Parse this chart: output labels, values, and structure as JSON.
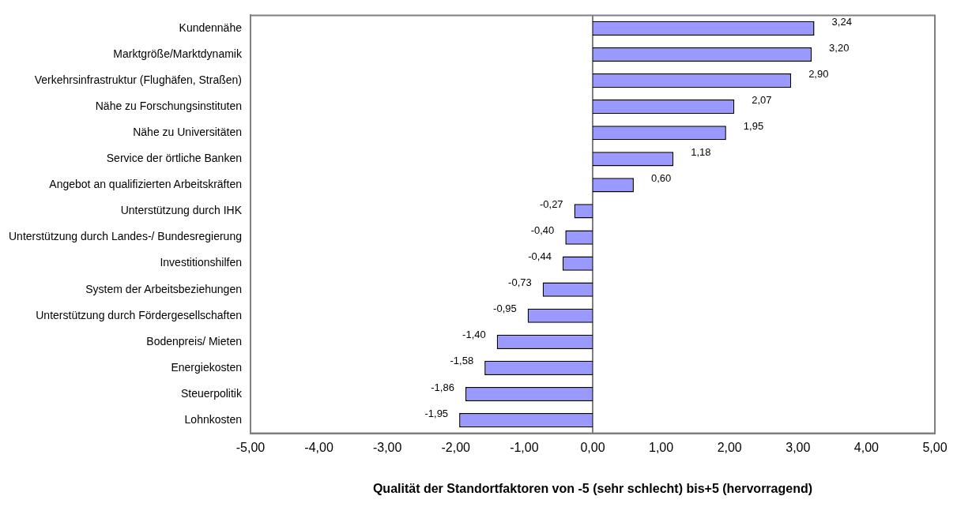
{
  "chart_data": {
    "type": "bar",
    "orientation": "horizontal",
    "xlabel": "Qualität der Standortfaktoren von -5 (sehr schlecht) bis+5 (hervorragend)",
    "categories": [
      "Kundennähe",
      "Marktgröße/Marktdynamik",
      "Verkehrsinfrastruktur (Flughäfen, Straßen)",
      "Nähe zu Forschungsinstituten",
      "Nähe zu Universitäten",
      "Service der örtliche Banken",
      "Angebot an qualifizierten Arbeitskräften",
      "Unterstützung durch IHK",
      "Unterstützung durch Landes-/ Bundesregierung",
      "Investitionshilfen",
      "System der Arbeitsbeziehungen",
      "Unterstützung durch Fördergesellschaften",
      "Bodenpreis/ Mieten",
      "Energiekosten",
      "Steuerpolitik",
      "Lohnkosten"
    ],
    "values": [
      3.24,
      3.2,
      2.9,
      2.07,
      1.95,
      1.18,
      0.6,
      -0.27,
      -0.4,
      -0.44,
      -0.73,
      -0.95,
      -1.4,
      -1.58,
      -1.86,
      -1.95
    ],
    "value_labels": [
      "3,24",
      "3,20",
      "2,90",
      "2,07",
      "1,95",
      "1,18",
      "0,60",
      "-0,27",
      "-0,40",
      "-0,44",
      "-0,73",
      "-0,95",
      "-1,40",
      "-1,58",
      "-1,86",
      "-1,95"
    ],
    "color": "#9999ff",
    "xlim": [
      -5,
      5
    ],
    "xticks": [
      {
        "value": -5,
        "label": "-5,00"
      },
      {
        "value": -4,
        "label": "-4,00"
      },
      {
        "value": -3,
        "label": "-3,00"
      },
      {
        "value": -2,
        "label": "-2,00"
      },
      {
        "value": -1,
        "label": "-1,00"
      },
      {
        "value": 0,
        "label": "0,00"
      },
      {
        "value": 1,
        "label": "1,00"
      },
      {
        "value": 2,
        "label": "2,00"
      },
      {
        "value": 3,
        "label": "3,00"
      },
      {
        "value": 4,
        "label": "4,00"
      },
      {
        "value": 5,
        "label": "5,00"
      }
    ],
    "ref_lines": [
      {
        "axis": "x",
        "value": 0,
        "color": "#000000"
      }
    ],
    "grid": false,
    "legend": false
  }
}
